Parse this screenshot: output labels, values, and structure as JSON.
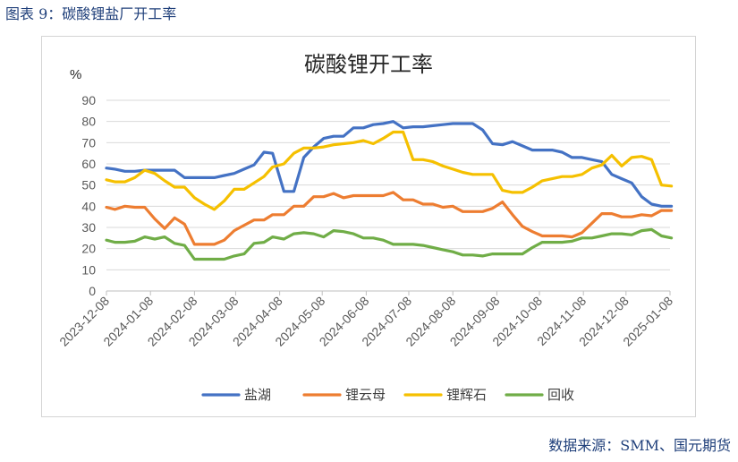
{
  "caption": "图表 9：碳酸锂盐厂开工率",
  "source": "数据来源：SMM、国元期货",
  "chart_data": {
    "type": "line",
    "title": "碳酸锂开工率",
    "unit_label": "%",
    "ylim": [
      0,
      90
    ],
    "y_ticks": [
      0,
      10,
      20,
      30,
      40,
      50,
      60,
      70,
      80,
      90
    ],
    "x_tick_labels": [
      "2023-12-08",
      "2024-01-08",
      "2024-02-08",
      "2024-03-08",
      "2024-04-08",
      "2024-05-08",
      "2024-06-08",
      "2024-07-08",
      "2024-08-08",
      "2024-09-08",
      "2024-10-08",
      "2024-11-08",
      "2024-12-08",
      "2025-01-08"
    ],
    "x_tick_dates": [
      "2023-12-08",
      "2024-01-08",
      "2024-02-08",
      "2024-03-08",
      "2024-04-08",
      "2024-05-08",
      "2024-06-08",
      "2024-07-08",
      "2024-08-08",
      "2024-09-08",
      "2024-10-08",
      "2024-11-08",
      "2024-12-08",
      "2025-01-08"
    ],
    "x_dates": [
      "2023-12-08",
      "2023-12-14",
      "2023-12-21",
      "2023-12-28",
      "2024-01-04",
      "2024-01-11",
      "2024-01-18",
      "2024-01-25",
      "2024-02-01",
      "2024-02-08",
      "2024-02-15",
      "2024-02-22",
      "2024-02-29",
      "2024-03-07",
      "2024-03-14",
      "2024-03-21",
      "2024-03-28",
      "2024-04-03",
      "2024-04-11",
      "2024-04-18",
      "2024-04-25",
      "2024-05-02",
      "2024-05-09",
      "2024-05-16",
      "2024-05-23",
      "2024-05-30",
      "2024-06-06",
      "2024-06-13",
      "2024-06-20",
      "2024-06-27",
      "2024-07-04",
      "2024-07-11",
      "2024-07-18",
      "2024-07-25",
      "2024-08-01",
      "2024-08-08",
      "2024-08-15",
      "2024-08-22",
      "2024-08-29",
      "2024-09-05",
      "2024-09-12",
      "2024-09-19",
      "2024-09-26",
      "2024-10-03",
      "2024-10-10",
      "2024-10-17",
      "2024-10-24",
      "2024-10-31",
      "2024-11-07",
      "2024-11-14",
      "2024-11-21",
      "2024-11-28",
      "2024-12-05",
      "2024-12-12",
      "2024-12-19",
      "2024-12-26",
      "2025-01-02",
      "2025-01-09"
    ],
    "grid": "horizontal",
    "legend_position": "bottom",
    "series": [
      {
        "name": "盐湖",
        "color": "#4472c4",
        "values": [
          58,
          57.5,
          56.5,
          56.5,
          57,
          57,
          57,
          57,
          53.5,
          53.5,
          53.5,
          53.5,
          54.5,
          55.5,
          57.5,
          59.5,
          65.5,
          65,
          47,
          47,
          63,
          68,
          72,
          73,
          73,
          77,
          77,
          78.5,
          79,
          80,
          77,
          77.5,
          77.5,
          78,
          78.5,
          79,
          79,
          79,
          76,
          69.5,
          69,
          70.5,
          68.5,
          66.5,
          66.5,
          66.5,
          65.5,
          63,
          63,
          62,
          61,
          55,
          53,
          51,
          44.5,
          41,
          40,
          40
        ]
      },
      {
        "name": "锂云母",
        "color": "#ed7d31",
        "values": [
          39.5,
          38.5,
          40,
          39.5,
          39.5,
          34,
          29.5,
          34.5,
          31.5,
          22,
          22,
          22,
          24,
          28.5,
          31,
          33.5,
          33.5,
          36,
          36,
          40,
          40,
          44.5,
          44.5,
          46,
          44,
          45,
          45,
          45,
          45,
          46.5,
          43,
          43,
          41,
          41,
          39.5,
          40,
          37.5,
          37.5,
          37.5,
          39,
          42,
          36,
          30.5,
          28,
          26,
          26,
          26,
          25.5,
          27.5,
          32,
          36.5,
          36.5,
          35,
          35,
          36,
          35.5,
          38,
          38
        ]
      },
      {
        "name": "锂辉石",
        "color": "#f5c000",
        "values": [
          52.5,
          51.5,
          51.5,
          53.5,
          57,
          55.5,
          52,
          49,
          49,
          44,
          41,
          38.5,
          42.5,
          48,
          48,
          51,
          54,
          58.5,
          60,
          65,
          67.5,
          67.5,
          68,
          69,
          69.5,
          70,
          71,
          69.5,
          72,
          75,
          75,
          62,
          62,
          61,
          59,
          57.5,
          56,
          55,
          55,
          55,
          47.5,
          46.5,
          46.5,
          49,
          52,
          53,
          54,
          54,
          55,
          58,
          59.5,
          64,
          59,
          63,
          63.5,
          62,
          50,
          49.5
        ]
      },
      {
        "name": "回收",
        "color": "#70ad47",
        "values": [
          24,
          23,
          23,
          23.5,
          25.5,
          24.5,
          25.5,
          22.5,
          21.5,
          15,
          15,
          15,
          15,
          16.5,
          17.5,
          22.5,
          23,
          25.5,
          24.5,
          27,
          27.5,
          27,
          25.5,
          28.5,
          28,
          27,
          25,
          25,
          24,
          22,
          22,
          22,
          21.5,
          20.5,
          19.5,
          18.5,
          17,
          17,
          16.5,
          17.5,
          17.5,
          17.5,
          17.5,
          20.5,
          23,
          23,
          23,
          23.5,
          25,
          25,
          26,
          27,
          27,
          26.5,
          28.5,
          29,
          26,
          25
        ]
      }
    ]
  }
}
